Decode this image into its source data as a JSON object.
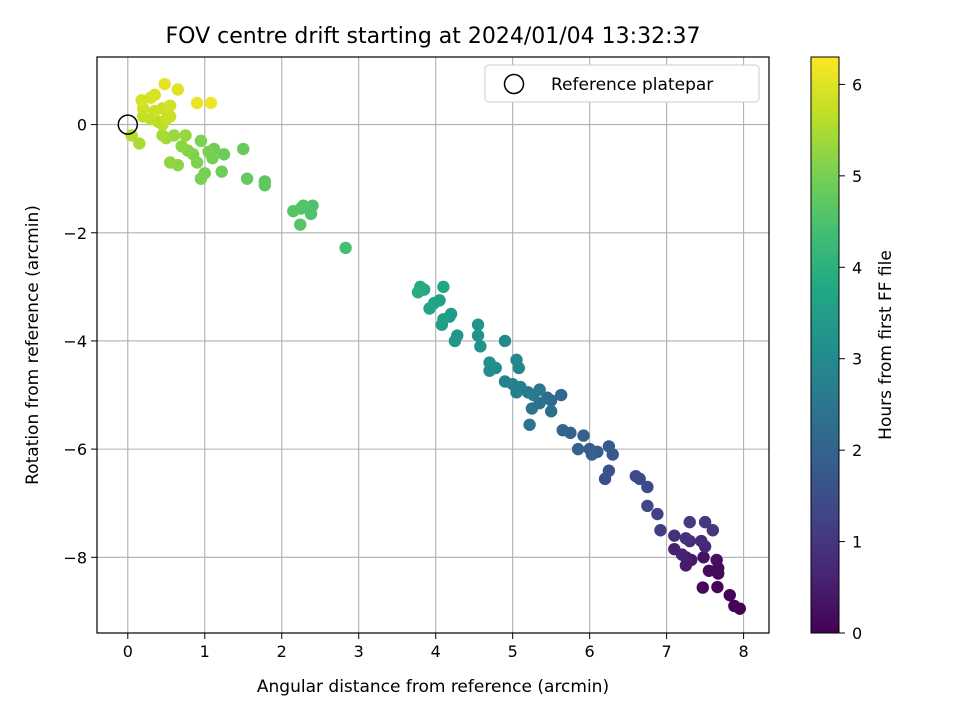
{
  "chart_data": {
    "type": "scatter",
    "title": "FOV centre drift starting at 2024/01/04 13:32:37",
    "xlabel": "Angular distance from reference (arcmin)",
    "ylabel": "Rotation from reference (arcmin)",
    "xlim": [
      -0.4,
      8.33
    ],
    "ylim": [
      -9.4,
      1.25
    ],
    "xticks": [
      "0",
      "1",
      "2",
      "3",
      "4",
      "5",
      "6",
      "7",
      "8"
    ],
    "yticks": [
      "0",
      "−2",
      "−4",
      "−6",
      "−8"
    ],
    "grid": true,
    "legend": {
      "placement": "top-right",
      "entries": [
        "Reference platepar"
      ]
    },
    "colorbar": {
      "label": "Hours from first FF file",
      "range": [
        0,
        6.3
      ],
      "ticks": [
        "0",
        "1",
        "2",
        "3",
        "4",
        "5",
        "6"
      ],
      "colormap": "viridis"
    },
    "reference_point": {
      "x": 0,
      "y": 0
    },
    "series": [
      {
        "points": [
          [
            7.95,
            -8.95,
            0.02
          ],
          [
            7.88,
            -8.9,
            0.05
          ],
          [
            7.82,
            -8.7,
            0.08
          ],
          [
            7.66,
            -8.55,
            0.1
          ],
          [
            7.47,
            -8.56,
            0.13
          ],
          [
            7.67,
            -8.3,
            0.15
          ],
          [
            7.55,
            -8.25,
            0.18
          ],
          [
            7.67,
            -8.2,
            0.2
          ],
          [
            7.65,
            -8.05,
            0.23
          ],
          [
            7.48,
            -8.0,
            0.3
          ],
          [
            7.32,
            -8.05,
            0.4
          ],
          [
            7.25,
            -8.15,
            0.45
          ],
          [
            7.25,
            -8.0,
            0.5
          ],
          [
            7.1,
            -7.85,
            0.55
          ],
          [
            7.2,
            -7.95,
            0.6
          ],
          [
            7.5,
            -7.8,
            0.7
          ],
          [
            7.45,
            -7.7,
            0.75
          ],
          [
            7.3,
            -7.7,
            0.8
          ],
          [
            7.1,
            -7.6,
            0.85
          ],
          [
            7.25,
            -7.65,
            0.9
          ],
          [
            7.6,
            -7.5,
            1.0
          ],
          [
            7.5,
            -7.35,
            1.05
          ],
          [
            7.3,
            -7.35,
            1.1
          ],
          [
            6.92,
            -7.5,
            1.15
          ],
          [
            6.88,
            -7.2,
            1.25
          ],
          [
            6.75,
            -7.05,
            1.3
          ],
          [
            6.75,
            -6.7,
            1.35
          ],
          [
            6.65,
            -6.55,
            1.4
          ],
          [
            6.6,
            -6.5,
            1.45
          ],
          [
            6.2,
            -6.55,
            1.55
          ],
          [
            6.25,
            -6.4,
            1.6
          ],
          [
            6.3,
            -6.1,
            1.7
          ],
          [
            6.25,
            -5.95,
            1.75
          ],
          [
            6.1,
            -6.05,
            1.8
          ],
          [
            6.0,
            -6.0,
            1.85
          ],
          [
            6.03,
            -6.1,
            1.9
          ],
          [
            5.85,
            -6.0,
            1.95
          ],
          [
            5.92,
            -5.75,
            2.0
          ],
          [
            5.75,
            -5.7,
            2.05
          ],
          [
            5.65,
            -5.65,
            2.1
          ],
          [
            5.63,
            -5.0,
            2.15
          ],
          [
            5.5,
            -5.1,
            2.2
          ],
          [
            5.45,
            -5.05,
            2.25
          ],
          [
            5.5,
            -5.3,
            2.3
          ],
          [
            5.35,
            -5.15,
            2.35
          ],
          [
            5.25,
            -5.25,
            2.4
          ],
          [
            5.22,
            -5.55,
            2.45
          ],
          [
            5.35,
            -4.9,
            2.5
          ],
          [
            5.27,
            -5.0,
            2.55
          ],
          [
            5.2,
            -4.95,
            2.6
          ],
          [
            5.1,
            -4.85,
            2.65
          ],
          [
            5.05,
            -4.95,
            2.7
          ],
          [
            5.0,
            -4.8,
            2.75
          ],
          [
            4.9,
            -4.75,
            2.8
          ],
          [
            5.08,
            -4.5,
            2.85
          ],
          [
            5.05,
            -4.35,
            2.9
          ],
          [
            4.9,
            -4.0,
            2.95
          ],
          [
            4.78,
            -4.5,
            3.0
          ],
          [
            4.7,
            -4.55,
            3.05
          ],
          [
            4.7,
            -4.4,
            3.1
          ],
          [
            4.58,
            -4.1,
            3.15
          ],
          [
            4.55,
            -3.9,
            3.2
          ],
          [
            4.55,
            -3.7,
            3.25
          ],
          [
            4.28,
            -3.9,
            3.3
          ],
          [
            4.25,
            -4.0,
            3.35
          ],
          [
            4.18,
            -3.55,
            3.4
          ],
          [
            4.2,
            -3.5,
            3.45
          ],
          [
            4.08,
            -3.7,
            3.5
          ],
          [
            4.1,
            -3.6,
            3.55
          ],
          [
            4.05,
            -3.25,
            3.6
          ],
          [
            3.98,
            -3.3,
            3.65
          ],
          [
            3.92,
            -3.4,
            3.7
          ],
          [
            4.1,
            -3.0,
            3.75
          ],
          [
            3.85,
            -3.05,
            3.8
          ],
          [
            3.8,
            -3.0,
            3.85
          ],
          [
            3.77,
            -3.1,
            3.9
          ],
          [
            2.83,
            -2.28,
            4.4
          ],
          [
            2.4,
            -1.5,
            4.5
          ],
          [
            2.38,
            -1.65,
            4.52
          ],
          [
            2.25,
            -1.55,
            4.55
          ],
          [
            2.28,
            -1.5,
            4.58
          ],
          [
            2.24,
            -1.85,
            4.6
          ],
          [
            2.15,
            -1.6,
            4.62
          ],
          [
            1.78,
            -1.05,
            4.7
          ],
          [
            1.78,
            -1.12,
            4.72
          ],
          [
            1.55,
            -1.0,
            4.78
          ],
          [
            1.5,
            -0.45,
            4.82
          ],
          [
            1.25,
            -0.55,
            4.88
          ],
          [
            1.22,
            -0.87,
            4.9
          ],
          [
            1.12,
            -0.45,
            4.92
          ],
          [
            1.1,
            -0.62,
            4.95
          ],
          [
            1.0,
            -0.9,
            4.98
          ],
          [
            0.95,
            -1.0,
            5.0
          ],
          [
            1.05,
            -0.5,
            5.02
          ],
          [
            0.95,
            -0.3,
            5.05
          ],
          [
            0.9,
            -0.7,
            5.08
          ],
          [
            0.85,
            -0.55,
            5.1
          ],
          [
            0.78,
            -0.48,
            5.15
          ],
          [
            0.7,
            -0.4,
            5.2
          ],
          [
            0.65,
            -0.75,
            5.22
          ],
          [
            0.55,
            -0.7,
            5.25
          ],
          [
            0.75,
            -0.2,
            5.3
          ],
          [
            0.6,
            -0.2,
            5.35
          ],
          [
            0.5,
            -0.25,
            5.4
          ],
          [
            0.45,
            -0.2,
            5.45
          ],
          [
            0.15,
            -0.35,
            5.5
          ],
          [
            0.05,
            -0.2,
            5.55
          ],
          [
            0.4,
            0.05,
            5.6
          ],
          [
            0.45,
            0.0,
            5.65
          ],
          [
            0.3,
            0.1,
            5.7
          ],
          [
            0.2,
            0.15,
            5.72
          ],
          [
            0.5,
            0.1,
            5.75
          ],
          [
            0.55,
            0.15,
            5.78
          ],
          [
            0.35,
            0.25,
            5.8
          ],
          [
            0.2,
            0.3,
            5.82
          ],
          [
            0.45,
            0.3,
            5.85
          ],
          [
            0.55,
            0.35,
            5.88
          ],
          [
            0.3,
            0.5,
            5.9
          ],
          [
            0.18,
            0.45,
            5.92
          ],
          [
            0.35,
            0.55,
            5.95
          ],
          [
            0.65,
            0.65,
            6.0
          ],
          [
            0.48,
            0.75,
            6.05
          ],
          [
            0.9,
            0.4,
            6.1
          ],
          [
            1.08,
            0.4,
            6.15
          ]
        ]
      }
    ]
  }
}
